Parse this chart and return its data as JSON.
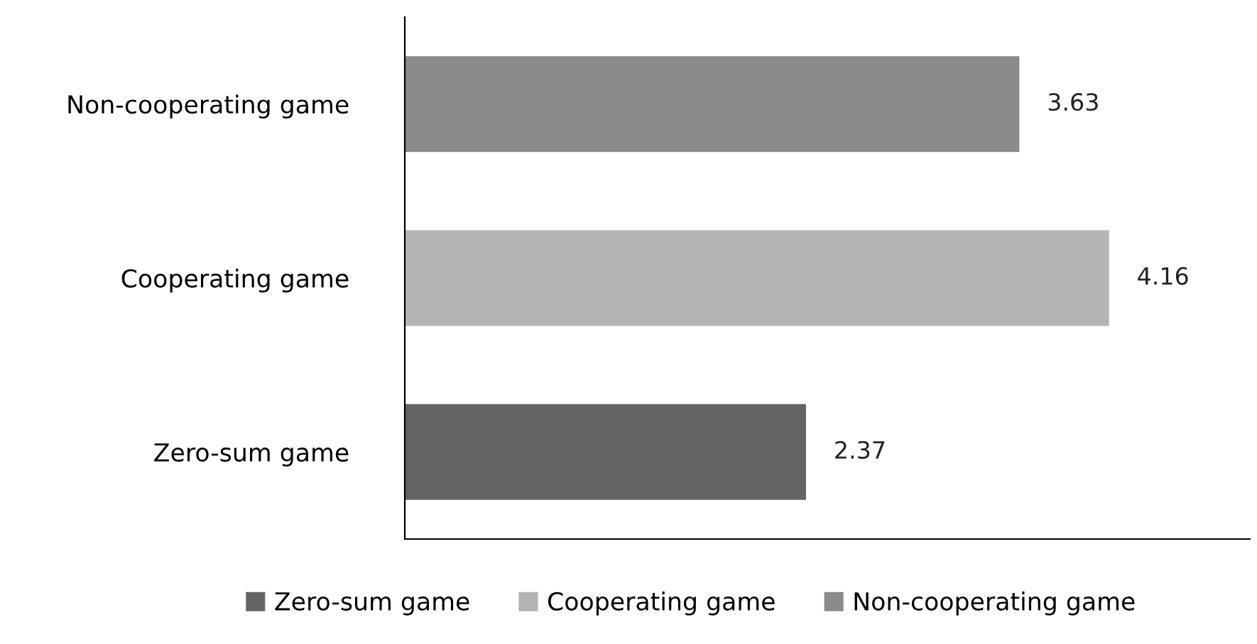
{
  "chart_data": {
    "type": "bar",
    "orientation": "horizontal",
    "categories": [
      "Non-cooperating game",
      "Cooperating game",
      "Zero-sum game"
    ],
    "series": [
      {
        "name": "Zero-sum game",
        "color": "#646464",
        "values": [
          null,
          null,
          2.37
        ]
      },
      {
        "name": "Cooperating game",
        "color": "#b4b4b4",
        "values": [
          null,
          4.16,
          null
        ]
      },
      {
        "name": "Non-cooperating game",
        "color": "#8a8a8a",
        "values": [
          3.63,
          null,
          null
        ]
      }
    ],
    "data_labels": true,
    "legend": "bottom",
    "grid": false,
    "tick_labels": "y"
  }
}
